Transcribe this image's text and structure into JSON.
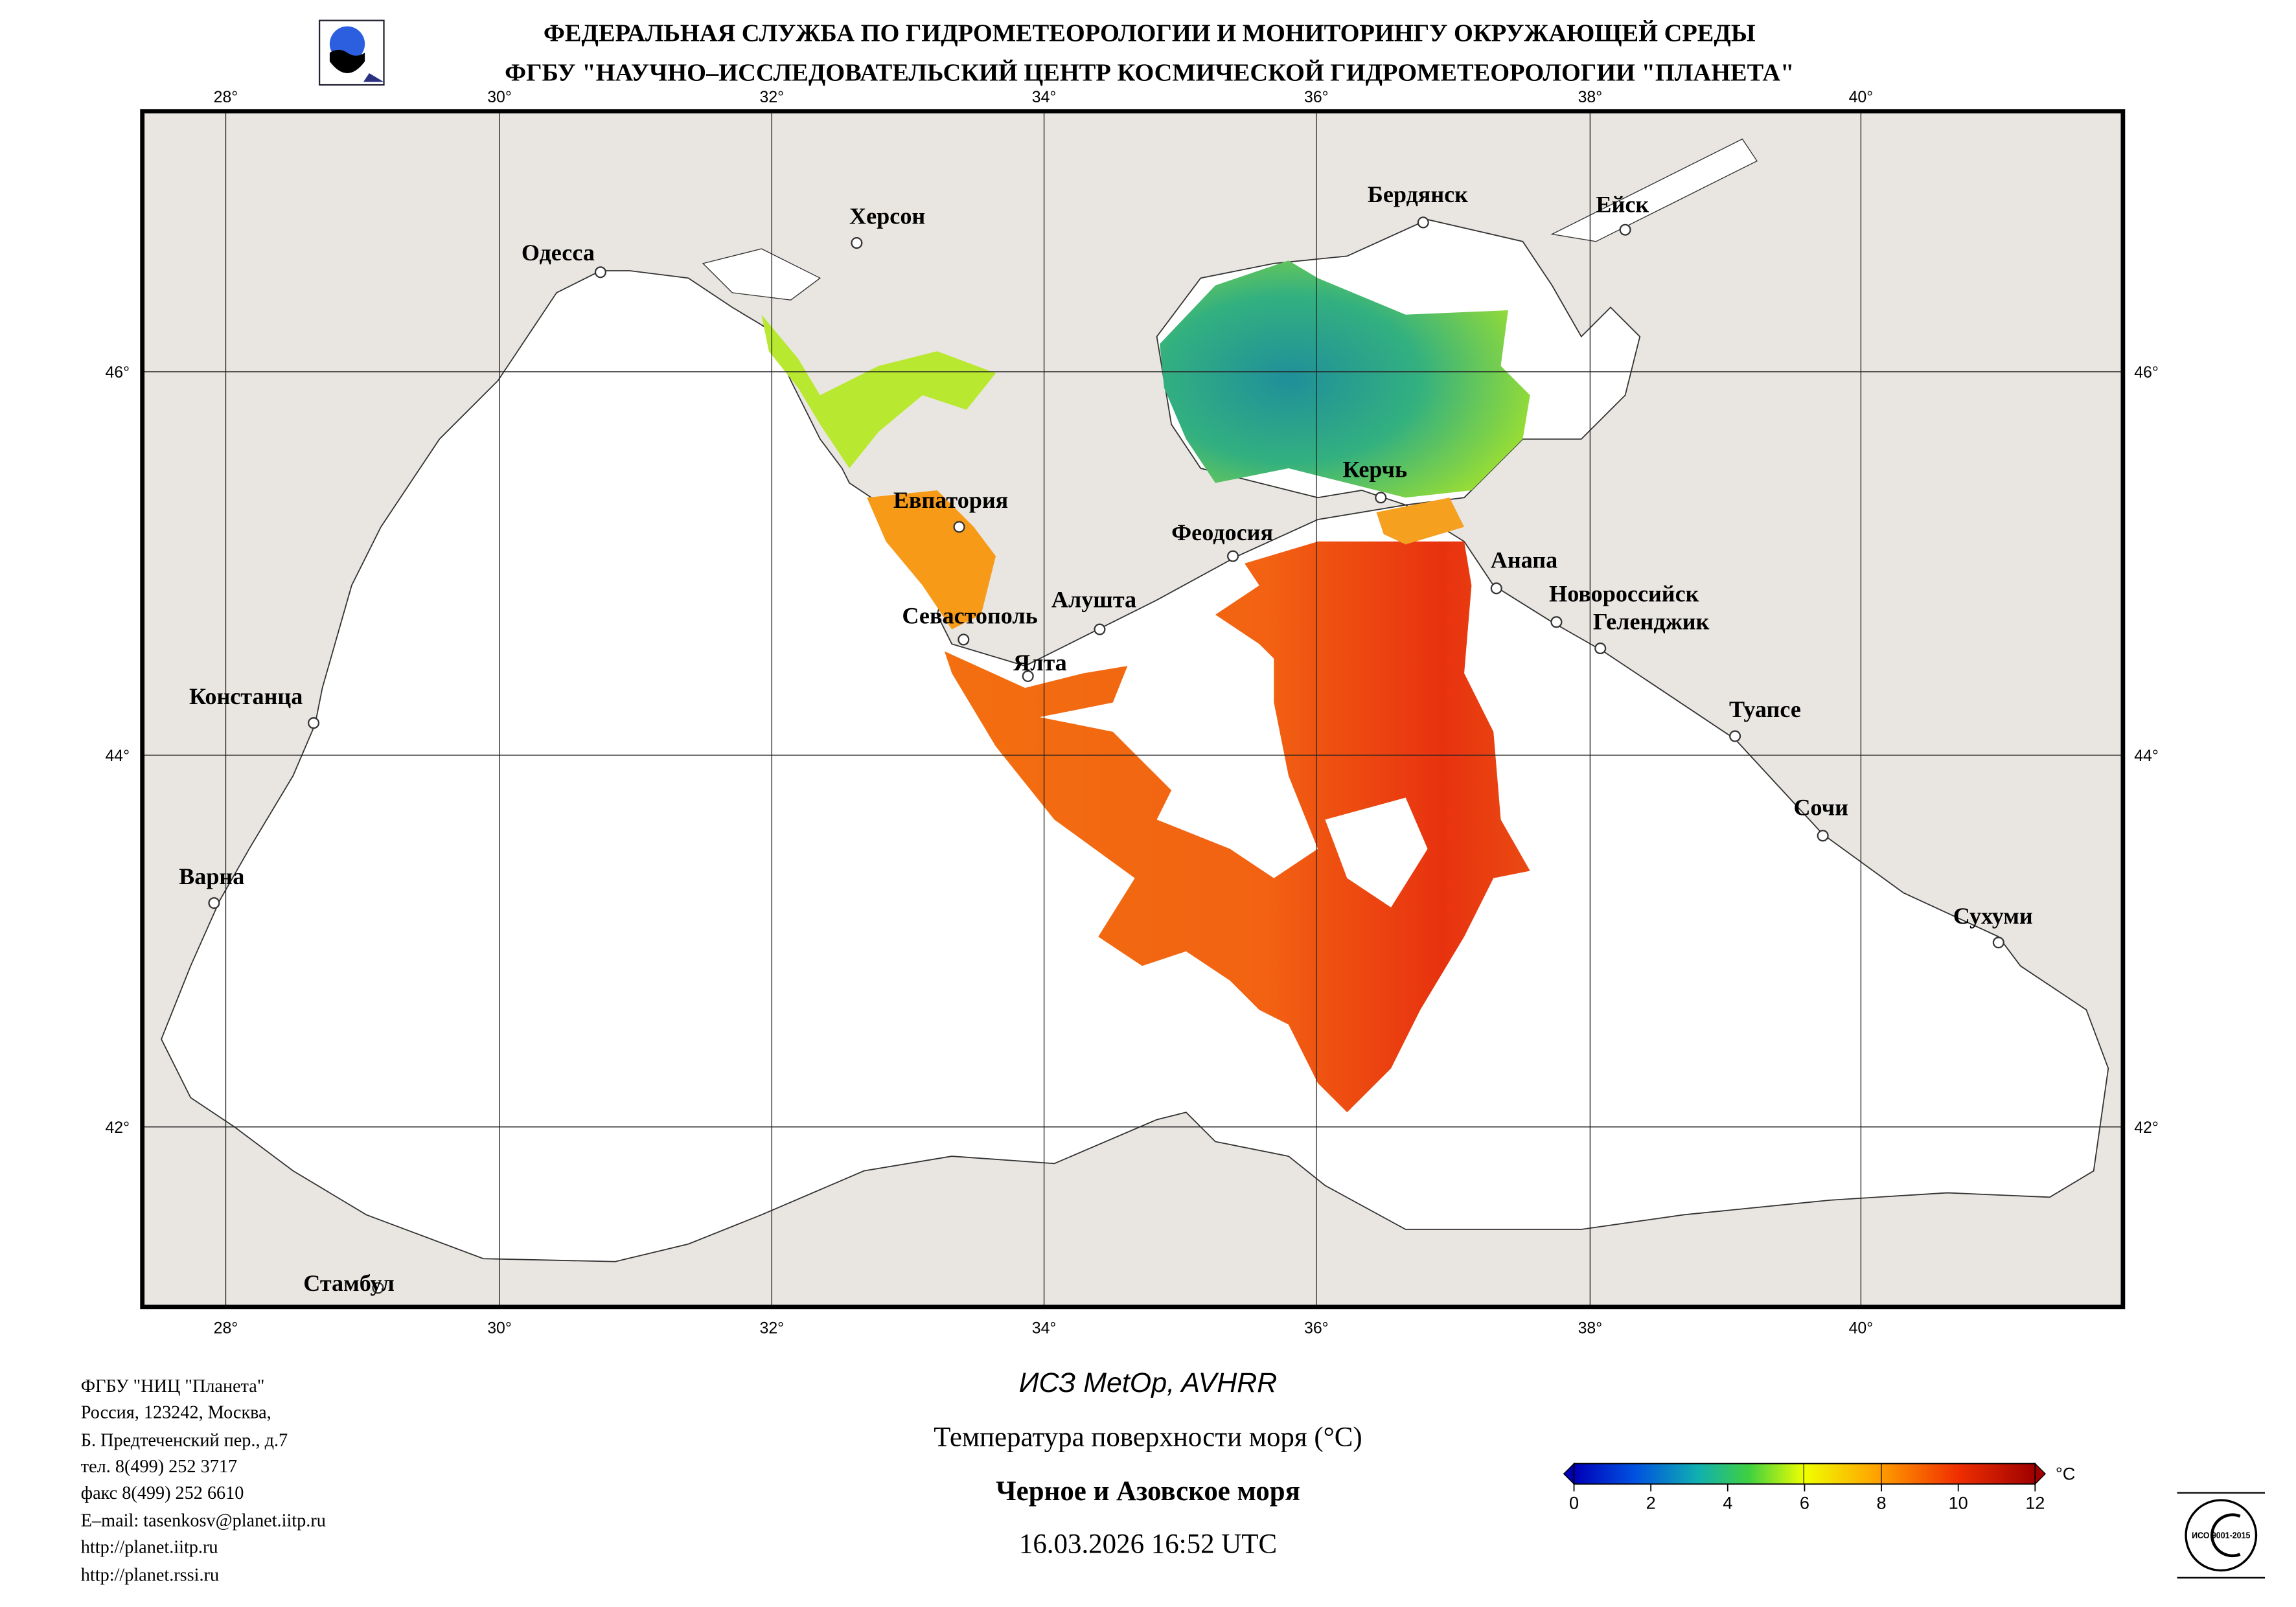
{
  "header": {
    "line1": "ФЕДЕРАЛЬНАЯ СЛУЖБА ПО ГИДРОМЕТЕОРОЛОГИИ И МОНИТОРИНГУ ОКРУЖАЮЩЕЙ СРЕДЫ",
    "line2": "ФГБУ \"НАУЧНО–ИССЛЕДОВАТЕЛЬСКИЙ ЦЕНТР КОСМИЧЕСКОЙ ГИДРОМЕТЕОРОЛОГИИ \"ПЛАНЕТА\""
  },
  "map": {
    "lon_labels": [
      "28°",
      "30°",
      "32°",
      "34°",
      "36°",
      "38°",
      "40°"
    ],
    "lat_labels": [
      "46°",
      "44°",
      "42°"
    ],
    "cities": [
      "Одесса",
      "Херсон",
      "Бердянск",
      "Ейск",
      "Евпатория",
      "Керчь",
      "Феодосия",
      "Анапа",
      "Новороссийск",
      "Геленджик",
      "Алушта",
      "Севастополь",
      "Ялта",
      "Констанца",
      "Туапсе",
      "Сочи",
      "Варна",
      "Сухуми",
      "Стамбул"
    ],
    "colors": {
      "land": "#e9e6e2",
      "sea": "#ffffff",
      "warm": "#f47b12",
      "hot": "#e83a10",
      "azov": "#2fa58c"
    }
  },
  "footer": {
    "address": [
      "ФГБУ \"НИЦ \"Планета\"",
      "Россия, 123242, Москва,",
      "Б. Предтеченский пер., д.7",
      "тел. 8(499) 252 3717",
      "факс 8(499) 252 6610",
      "E–mail: tasenkosv@planet.iitp.ru",
      "http://planet.iitp.ru",
      "http://planet.rssi.ru"
    ],
    "satellite": "ИСЗ MetOp, AVHRR",
    "product": "Температура поверхности моря (°C)",
    "region": "Черное и Азовское моря",
    "datetime": "16.03.2026 16:52 UTC"
  },
  "colorbar": {
    "unit": "°C",
    "ticks": [
      "0",
      "2",
      "4",
      "6",
      "8",
      "10",
      "12"
    ],
    "range": [
      0,
      12
    ]
  },
  "badge": {
    "text": "ИСО 9001-2015"
  }
}
